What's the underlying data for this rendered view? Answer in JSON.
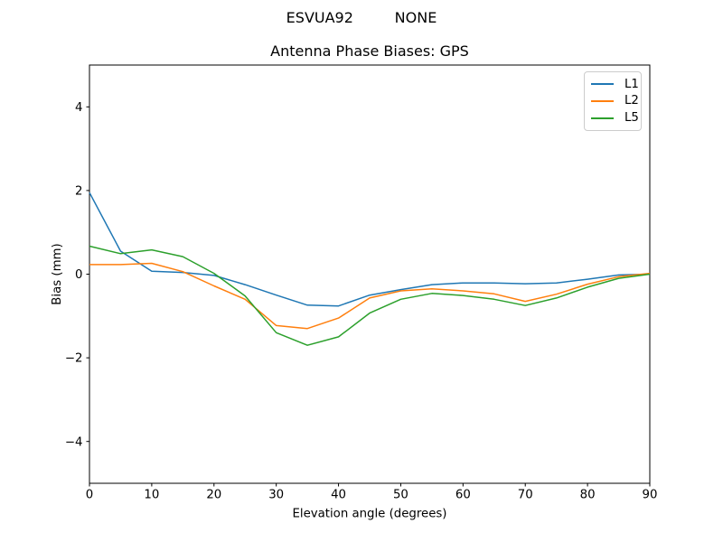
{
  "figure": {
    "suptitle": "ESVUA92         NONE"
  },
  "chart_data": {
    "type": "line",
    "title": "Antenna Phase Biases: GPS",
    "xlabel": "Elevation angle (degrees)",
    "ylabel": "Bias (mm)",
    "xlim": [
      0,
      90
    ],
    "ylim": [
      -5,
      5
    ],
    "xticks": [
      0,
      10,
      20,
      30,
      40,
      50,
      60,
      70,
      80,
      90
    ],
    "yticks": [
      -4,
      -2,
      0,
      2,
      4
    ],
    "grid": false,
    "legend_position": "upper right",
    "x": [
      0,
      5,
      10,
      15,
      20,
      25,
      30,
      35,
      40,
      45,
      50,
      55,
      60,
      65,
      70,
      75,
      80,
      85,
      90
    ],
    "series": [
      {
        "name": "L1",
        "color": "#1f77b4",
        "values": [
          1.95,
          0.55,
          0.07,
          0.04,
          -0.03,
          -0.25,
          -0.5,
          -0.74,
          -0.76,
          -0.5,
          -0.37,
          -0.25,
          -0.21,
          -0.21,
          -0.23,
          -0.21,
          -0.12,
          -0.02,
          0.0
        ]
      },
      {
        "name": "L2",
        "color": "#ff7f0e",
        "values": [
          0.23,
          0.23,
          0.26,
          0.06,
          -0.28,
          -0.6,
          -1.23,
          -1.3,
          -1.05,
          -0.57,
          -0.4,
          -0.35,
          -0.4,
          -0.47,
          -0.65,
          -0.48,
          -0.24,
          -0.06,
          0.02
        ]
      },
      {
        "name": "L5",
        "color": "#2ca02c",
        "values": [
          0.67,
          0.49,
          0.58,
          0.42,
          0.02,
          -0.52,
          -1.4,
          -1.7,
          -1.5,
          -0.93,
          -0.6,
          -0.46,
          -0.51,
          -0.6,
          -0.75,
          -0.57,
          -0.31,
          -0.1,
          0.0
        ]
      }
    ]
  }
}
